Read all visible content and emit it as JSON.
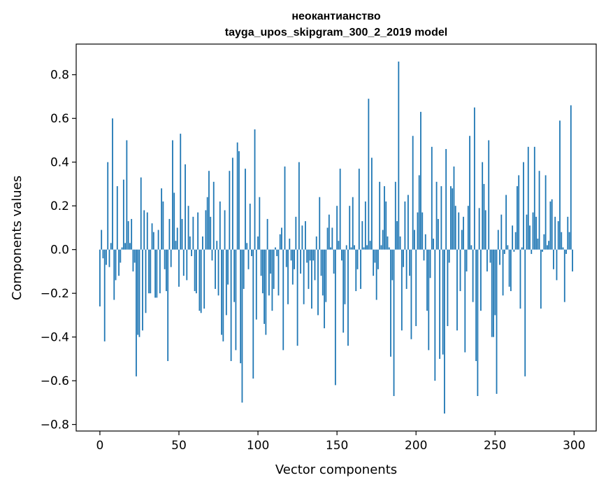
{
  "chart_data": {
    "type": "bar",
    "title": "неокантианство",
    "subtitle": "tayga_upos_skipgram_300_2_2019 model",
    "xlabel": "Vector components",
    "ylabel": "Components values",
    "xlim": [
      -15,
      314
    ],
    "ylim": [
      -0.83,
      0.94
    ],
    "x_ticks": [
      0,
      50,
      100,
      150,
      200,
      250,
      300
    ],
    "x_tick_labels": [
      "0",
      "50",
      "100",
      "150",
      "200",
      "250",
      "300"
    ],
    "y_ticks": [
      -0.8,
      -0.6,
      -0.4,
      -0.2,
      0.0,
      0.2,
      0.4,
      0.6,
      0.8
    ],
    "y_tick_labels": [
      "−0.8",
      "−0.6",
      "−0.4",
      "−0.2",
      "0.0",
      "0.2",
      "0.4",
      "0.6",
      "0.8"
    ],
    "grid": false,
    "bar_color": "#1f77b4",
    "values": [
      -0.26,
      0.09,
      -0.04,
      -0.42,
      -0.07,
      0.4,
      -0.08,
      0.03,
      0.6,
      -0.23,
      -0.14,
      0.29,
      -0.12,
      -0.06,
      0.01,
      0.32,
      0.03,
      0.5,
      0.13,
      0.03,
      0.14,
      -0.1,
      -0.06,
      -0.58,
      -0.39,
      -0.4,
      0.33,
      -0.37,
      0.18,
      -0.29,
      0.17,
      -0.2,
      -0.2,
      0.12,
      0.08,
      -0.22,
      -0.22,
      0.09,
      -0.2,
      0.28,
      0.22,
      -0.09,
      -0.19,
      -0.51,
      0.14,
      -0.08,
      0.5,
      0.26,
      0.04,
      0.1,
      -0.17,
      0.53,
      0.14,
      -0.12,
      0.39,
      -0.14,
      0.2,
      0.06,
      -0.03,
      0.15,
      -0.19,
      -0.2,
      0.17,
      -0.28,
      -0.29,
      0.06,
      -0.27,
      0.18,
      0.24,
      0.36,
      0.15,
      -0.05,
      0.31,
      -0.18,
      0.04,
      -0.21,
      0.22,
      -0.39,
      -0.42,
      0.18,
      -0.3,
      -0.16,
      0.36,
      -0.51,
      0.42,
      -0.24,
      -0.46,
      0.49,
      0.45,
      -0.52,
      -0.7,
      -0.18,
      0.37,
      0.03,
      -0.09,
      0.21,
      -0.03,
      -0.59,
      0.55,
      -0.32,
      0.06,
      0.24,
      -0.12,
      -0.2,
      -0.34,
      -0.39,
      0.14,
      -0.21,
      -0.11,
      -0.28,
      -0.18,
      0.01,
      -0.03,
      -0.21,
      0.07,
      0.1,
      -0.46,
      0.38,
      -0.08,
      -0.25,
      0.05,
      -0.05,
      -0.16,
      -0.09,
      0.15,
      -0.44,
      0.4,
      -0.11,
      0.11,
      -0.25,
      0.13,
      -0.06,
      -0.18,
      -0.05,
      -0.27,
      -0.05,
      -0.14,
      0.06,
      -0.3,
      0.24,
      -0.12,
      -0.21,
      -0.36,
      -0.24,
      0.1,
      0.16,
      0.01,
      0.1,
      -0.11,
      -0.62,
      0.2,
      0.04,
      0.37,
      -0.05,
      -0.38,
      -0.25,
      0.02,
      -0.44,
      0.2,
      0.01,
      0.24,
      0.02,
      -0.19,
      -0.09,
      0.37,
      -0.18,
      0.13,
      0.01,
      0.22,
      0.02,
      0.69,
      0.04,
      0.42,
      -0.12,
      -0.06,
      -0.23,
      -0.09,
      0.31,
      0.02,
      0.09,
      0.29,
      0.22,
      0.06,
      0.01,
      -0.49,
      -0.14,
      -0.67,
      0.31,
      0.13,
      0.86,
      0.06,
      -0.37,
      -0.08,
      0.22,
      -0.18,
      0.25,
      -0.12,
      -0.41,
      0.52,
      0.09,
      -0.35,
      0.17,
      0.34,
      0.63,
      0.17,
      -0.05,
      0.07,
      -0.28,
      -0.46,
      -0.13,
      0.47,
      0.05,
      -0.6,
      0.31,
      0.14,
      -0.5,
      0.29,
      -0.48,
      -0.75,
      0.46,
      -0.35,
      -0.06,
      0.29,
      0.28,
      0.38,
      0.2,
      -0.37,
      0.17,
      -0.19,
      0.09,
      0.15,
      -0.47,
      -0.1,
      0.2,
      0.52,
      0.02,
      -0.24,
      0.65,
      -0.51,
      -0.67,
      0.19,
      -0.28,
      0.4,
      0.3,
      0.18,
      -0.1,
      0.5,
      -0.06,
      -0.4,
      -0.4,
      -0.3,
      -0.66,
      0.09,
      -0.07,
      0.16,
      -0.21,
      -0.02,
      0.25,
      0.02,
      -0.17,
      -0.19,
      0.11,
      -0.01,
      0.08,
      0.29,
      0.34,
      -0.27,
      0.01,
      0.4,
      -0.58,
      0.16,
      0.47,
      0.11,
      -0.02,
      0.17,
      0.47,
      0.15,
      0.05,
      0.36,
      -0.27,
      -0.01,
      0.07,
      0.34,
      0.02,
      0.04,
      0.22,
      0.23,
      -0.09,
      0.15,
      -0.14,
      0.13,
      0.59,
      0.08,
      0.01,
      -0.24,
      -0.02,
      0.15,
      0.08,
      0.66,
      -0.1
    ]
  }
}
